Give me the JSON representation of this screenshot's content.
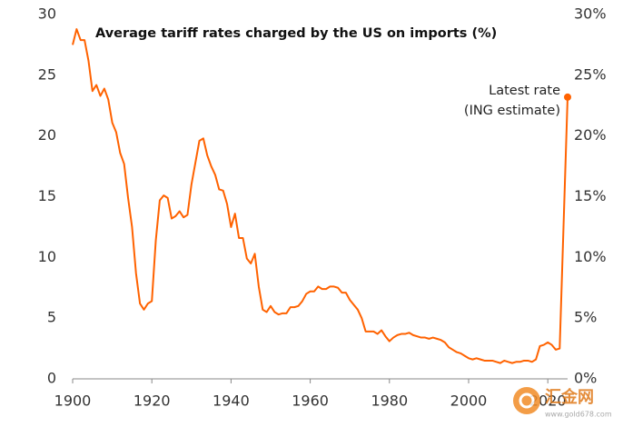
{
  "chart_data": {
    "type": "line",
    "title": "Average tariff rates charged by the US on imports (%)",
    "annotation": [
      "Latest rate",
      "(ING estimate)"
    ],
    "x": [
      1900,
      1901,
      1902,
      1903,
      1904,
      1905,
      1906,
      1907,
      1908,
      1909,
      1910,
      1911,
      1912,
      1913,
      1914,
      1915,
      1916,
      1917,
      1918,
      1919,
      1920,
      1921,
      1922,
      1923,
      1924,
      1925,
      1926,
      1927,
      1928,
      1929,
      1930,
      1931,
      1932,
      1933,
      1934,
      1935,
      1936,
      1937,
      1938,
      1939,
      1940,
      1941,
      1942,
      1943,
      1944,
      1945,
      1946,
      1947,
      1948,
      1949,
      1950,
      1951,
      1952,
      1953,
      1954,
      1955,
      1956,
      1957,
      1958,
      1959,
      1960,
      1961,
      1962,
      1963,
      1964,
      1965,
      1966,
      1967,
      1968,
      1969,
      1970,
      1971,
      1972,
      1973,
      1974,
      1975,
      1976,
      1977,
      1978,
      1979,
      1980,
      1981,
      1982,
      1983,
      1984,
      1985,
      1986,
      1987,
      1988,
      1989,
      1990,
      1991,
      1992,
      1993,
      1994,
      1995,
      1996,
      1997,
      1998,
      1999,
      2000,
      2001,
      2002,
      2003,
      2004,
      2005,
      2006,
      2007,
      2008,
      2009,
      2010,
      2011,
      2012,
      2013,
      2014,
      2015,
      2016,
      2017,
      2018,
      2019,
      2020,
      2021,
      2022,
      2023,
      2025
    ],
    "series": [
      {
        "color": "#ff6200",
        "values": [
          27.5,
          28.8,
          27.9,
          27.9,
          26.2,
          23.7,
          24.2,
          23.3,
          23.9,
          23.0,
          21.1,
          20.3,
          18.6,
          17.7,
          14.9,
          12.5,
          8.7,
          6.2,
          5.7,
          6.2,
          6.4,
          11.4,
          14.7,
          15.1,
          14.9,
          13.2,
          13.4,
          13.8,
          13.3,
          13.5,
          16.0,
          17.8,
          19.6,
          19.8,
          18.4,
          17.5,
          16.8,
          15.6,
          15.5,
          14.4,
          12.5,
          13.6,
          11.6,
          11.6,
          9.9,
          9.5,
          10.3,
          7.6,
          5.7,
          5.5,
          6.0,
          5.5,
          5.3,
          5.4,
          5.4,
          5.9,
          5.9,
          6.0,
          6.4,
          7.0,
          7.2,
          7.2,
          7.6,
          7.4,
          7.4,
          7.6,
          7.6,
          7.5,
          7.1,
          7.1,
          6.5,
          6.1,
          5.7,
          5.0,
          3.9,
          3.9,
          3.9,
          3.7,
          4.0,
          3.5,
          3.1,
          3.4,
          3.6,
          3.7,
          3.7,
          3.8,
          3.6,
          3.5,
          3.4,
          3.4,
          3.3,
          3.4,
          3.3,
          3.2,
          3.0,
          2.6,
          2.4,
          2.2,
          2.1,
          1.9,
          1.7,
          1.6,
          1.7,
          1.6,
          1.5,
          1.5,
          1.5,
          1.4,
          1.3,
          1.5,
          1.4,
          1.3,
          1.4,
          1.4,
          1.5,
          1.5,
          1.4,
          1.6,
          2.7,
          2.8,
          3.0,
          2.8,
          2.4,
          2.5,
          23.2
        ]
      }
    ],
    "xlim": [
      1900,
      2025
    ],
    "xticks": [
      1900,
      1920,
      1940,
      1960,
      1980,
      2000,
      2020
    ],
    "ylim": [
      0,
      30
    ],
    "yticks": [
      0,
      5,
      10,
      15,
      20,
      25,
      30
    ],
    "y2lim": [
      0,
      30
    ],
    "y2ticks": [
      {
        "value": 0,
        "label": "0%"
      },
      {
        "value": 5,
        "label": "5%"
      },
      {
        "value": 10,
        "label": "10%"
      },
      {
        "value": 15,
        "label": "15%"
      },
      {
        "value": 20,
        "label": "20%"
      },
      {
        "value": 25,
        "label": "25%"
      },
      {
        "value": 30,
        "label": "30%"
      }
    ],
    "grid": false
  },
  "watermark": {
    "name": "汇金网",
    "url": "www.gold678.com"
  }
}
